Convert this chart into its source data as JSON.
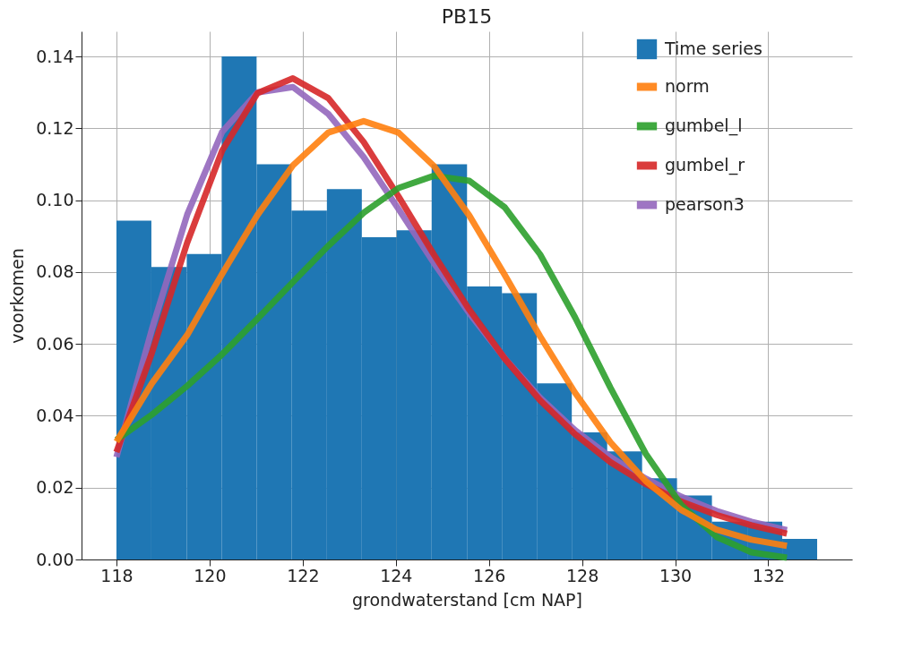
{
  "chart_data": {
    "type": "histogram",
    "title": "PB15",
    "xlabel": "grondwaterstand [cm NAP]",
    "ylabel": "voorkomen",
    "bins": [
      118,
      118.75,
      119.51,
      120.26,
      121.01,
      121.76,
      122.52,
      123.27,
      124.02,
      124.77,
      125.53,
      126.28,
      127.03,
      127.78,
      128.54,
      129.29,
      130.04,
      130.79,
      131.55,
      132.3,
      133.05
    ],
    "series": [
      {
        "name": "Time series",
        "color": "#1f77b4",
        "values": [
          0.0943,
          0.0814,
          0.085,
          0.14,
          0.11,
          0.0971,
          0.1031,
          0.0897,
          0.0916,
          0.11,
          0.076,
          0.0741,
          0.049,
          0.0354,
          0.0301,
          0.0226,
          0.0178,
          0.0105,
          0.0105,
          0.0057
        ]
      },
      {
        "type": "line",
        "name": "norm",
        "color": "#ff7f0e",
        "x": [
          118,
          118.76,
          119.52,
          120.27,
          121.03,
          121.79,
          122.55,
          123.31,
          124.06,
          124.82,
          125.58,
          126.34,
          127.1,
          127.85,
          128.61,
          129.37,
          130.13,
          130.89,
          131.64,
          132.4
        ],
        "values": [
          0.0328,
          0.049,
          0.0625,
          0.0795,
          0.0959,
          0.1097,
          0.1188,
          0.122,
          0.1188,
          0.1095,
          0.0957,
          0.0792,
          0.0621,
          0.0464,
          0.0326,
          0.0218,
          0.0138,
          0.0083,
          0.0055,
          0.0038
        ]
      },
      {
        "type": "line",
        "name": "gumbel_l",
        "color": "#2ca02c",
        "x": [
          118,
          118.76,
          119.52,
          120.27,
          121.03,
          121.79,
          122.55,
          123.31,
          124.06,
          124.82,
          125.58,
          126.34,
          127.1,
          127.85,
          128.61,
          129.37,
          130.13,
          130.89,
          131.64,
          132.4
        ],
        "values": [
          0.0333,
          0.0403,
          0.0483,
          0.0571,
          0.067,
          0.0772,
          0.0873,
          0.0965,
          0.1034,
          0.1068,
          0.1054,
          0.098,
          0.0849,
          0.0674,
          0.0478,
          0.0294,
          0.0152,
          0.0063,
          0.002,
          0.0005
        ]
      },
      {
        "type": "line",
        "name": "gumbel_r",
        "color": "#d62728",
        "x": [
          118,
          118.76,
          119.52,
          120.27,
          121.03,
          121.79,
          122.55,
          123.31,
          124.06,
          124.82,
          125.58,
          126.34,
          127.1,
          127.85,
          128.61,
          129.37,
          130.13,
          130.89,
          131.64,
          132.4
        ],
        "values": [
          0.0299,
          0.0575,
          0.0882,
          0.1138,
          0.1298,
          0.1339,
          0.1284,
          0.1162,
          0.101,
          0.0848,
          0.0695,
          0.0559,
          0.0443,
          0.0349,
          0.0271,
          0.021,
          0.0161,
          0.0124,
          0.0095,
          0.0072
        ]
      },
      {
        "type": "line",
        "name": "pearson3",
        "color": "#9467bd",
        "x": [
          118,
          118.76,
          119.52,
          120.27,
          121.03,
          121.79,
          122.55,
          123.31,
          124.06,
          124.82,
          125.58,
          126.34,
          127.1,
          127.85,
          128.61,
          129.37,
          130.13,
          130.89,
          131.64,
          132.4
        ],
        "values": [
          0.0285,
          0.064,
          0.096,
          0.119,
          0.13,
          0.1315,
          0.124,
          0.112,
          0.0975,
          0.0825,
          0.0685,
          0.056,
          0.045,
          0.036,
          0.0285,
          0.0225,
          0.0175,
          0.0135,
          0.0105,
          0.0082
        ]
      }
    ],
    "xlim": [
      117.25,
      133.8
    ],
    "xticks": [
      118,
      120,
      122,
      124,
      126,
      128,
      130,
      132
    ],
    "ylim": [
      0,
      0.147
    ],
    "yticks": [
      {
        "value": 0,
        "label": "0.00"
      },
      {
        "value": 0.02,
        "label": "0.02"
      },
      {
        "value": 0.04,
        "label": "0.04"
      },
      {
        "value": 0.06,
        "label": "0.06"
      },
      {
        "value": 0.08,
        "label": "0.08"
      },
      {
        "value": 0.1,
        "label": "0.10"
      },
      {
        "value": 0.12,
        "label": "0.12"
      },
      {
        "value": 0.14,
        "label": "0.14"
      }
    ],
    "grid": true,
    "legend": "top right"
  }
}
